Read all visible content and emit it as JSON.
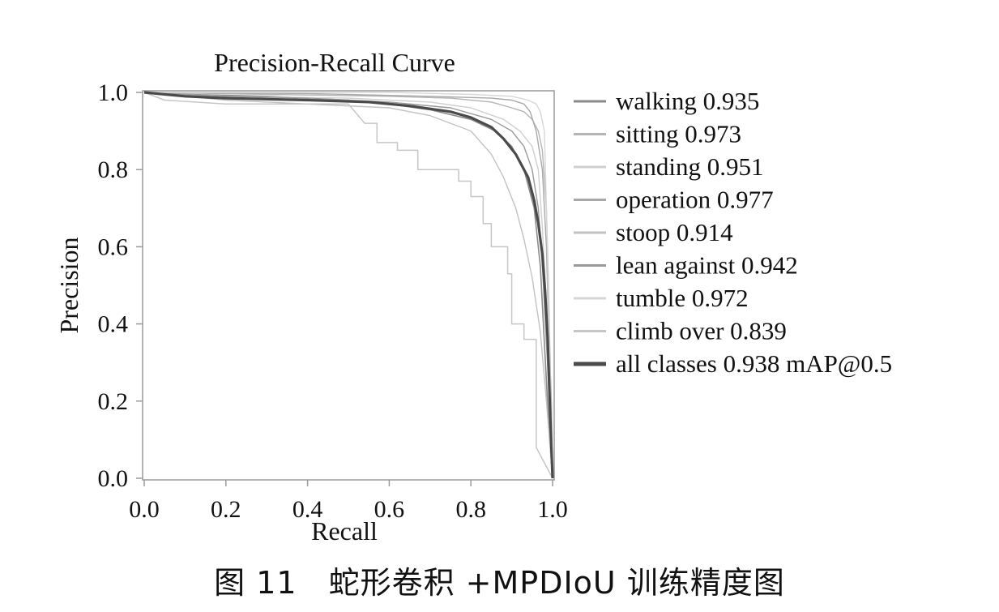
{
  "caption": "图 11　蛇形卷积 +MPDIoU 训练精度图",
  "chart_data": {
    "type": "line",
    "title": "Precision-Recall Curve",
    "xlabel": "Recall",
    "ylabel": "Precision",
    "xlim": [
      0,
      1
    ],
    "ylim": [
      0,
      1
    ],
    "xticks": [
      "0.0",
      "0.2",
      "0.4",
      "0.6",
      "0.8",
      "1.0"
    ],
    "yticks": [
      "0.0",
      "0.2",
      "0.4",
      "0.6",
      "0.8",
      "1.0"
    ],
    "grid": false,
    "legend_position": "right",
    "series": [
      {
        "name": "walking 0.935",
        "color": "#8a8a8a",
        "width": 1.6,
        "points": [
          [
            0,
            1.0
          ],
          [
            0.1,
            0.995
          ],
          [
            0.3,
            0.99
          ],
          [
            0.5,
            0.98
          ],
          [
            0.6,
            0.97
          ],
          [
            0.7,
            0.955
          ],
          [
            0.8,
            0.93
          ],
          [
            0.86,
            0.9
          ],
          [
            0.9,
            0.86
          ],
          [
            0.93,
            0.8
          ],
          [
            0.955,
            0.7
          ],
          [
            0.97,
            0.55
          ],
          [
            0.98,
            0.35
          ],
          [
            0.99,
            0.15
          ],
          [
            1.0,
            0.0
          ]
        ]
      },
      {
        "name": "sitting 0.973",
        "color": "#b4b4b4",
        "width": 1.4,
        "points": [
          [
            0,
            1.0
          ],
          [
            0.3,
            0.995
          ],
          [
            0.6,
            0.99
          ],
          [
            0.75,
            0.985
          ],
          [
            0.85,
            0.975
          ],
          [
            0.9,
            0.96
          ],
          [
            0.93,
            0.95
          ],
          [
            0.95,
            0.93
          ],
          [
            0.965,
            0.9
          ],
          [
            0.975,
            0.85
          ],
          [
            0.985,
            0.7
          ],
          [
            0.99,
            0.5
          ],
          [
            0.995,
            0.25
          ],
          [
            1.0,
            0.0
          ]
        ]
      },
      {
        "name": "standing 0.951",
        "color": "#cfcfcf",
        "width": 1.4,
        "points": [
          [
            0,
            1.0
          ],
          [
            0.2,
            0.99
          ],
          [
            0.5,
            0.985
          ],
          [
            0.7,
            0.975
          ],
          [
            0.8,
            0.96
          ],
          [
            0.88,
            0.93
          ],
          [
            0.92,
            0.9
          ],
          [
            0.95,
            0.86
          ],
          [
            0.965,
            0.8
          ],
          [
            0.975,
            0.65
          ],
          [
            0.985,
            0.45
          ],
          [
            0.995,
            0.2
          ],
          [
            1.0,
            0.0
          ]
        ]
      },
      {
        "name": "operation 0.977",
        "color": "#a8a8a8",
        "width": 1.4,
        "points": [
          [
            0,
            1.0
          ],
          [
            0.4,
            0.997
          ],
          [
            0.7,
            0.99
          ],
          [
            0.85,
            0.985
          ],
          [
            0.9,
            0.98
          ],
          [
            0.93,
            0.97
          ],
          [
            0.945,
            0.95
          ],
          [
            0.96,
            0.9
          ],
          [
            0.975,
            0.8
          ],
          [
            0.985,
            0.6
          ],
          [
            0.99,
            0.4
          ],
          [
            0.997,
            0.2
          ],
          [
            1.0,
            0.0
          ]
        ]
      },
      {
        "name": "stoop 0.914",
        "color": "#c2c2c2",
        "width": 1.4,
        "points": [
          [
            0,
            1.0
          ],
          [
            0.2,
            0.98
          ],
          [
            0.4,
            0.97
          ],
          [
            0.6,
            0.96
          ],
          [
            0.7,
            0.94
          ],
          [
            0.8,
            0.9
          ],
          [
            0.85,
            0.84
          ],
          [
            0.88,
            0.78
          ],
          [
            0.91,
            0.7
          ],
          [
            0.93,
            0.62
          ],
          [
            0.95,
            0.52
          ],
          [
            0.97,
            0.38
          ],
          [
            0.985,
            0.2
          ],
          [
            1.0,
            0.0
          ]
        ]
      },
      {
        "name": "lean against 0.942",
        "color": "#9a9a9a",
        "width": 1.4,
        "points": [
          [
            0,
            1.0
          ],
          [
            0.2,
            0.99
          ],
          [
            0.4,
            0.985
          ],
          [
            0.6,
            0.975
          ],
          [
            0.75,
            0.96
          ],
          [
            0.85,
            0.93
          ],
          [
            0.9,
            0.9
          ],
          [
            0.93,
            0.86
          ],
          [
            0.95,
            0.8
          ],
          [
            0.965,
            0.7
          ],
          [
            0.975,
            0.55
          ],
          [
            0.985,
            0.35
          ],
          [
            0.995,
            0.15
          ],
          [
            1.0,
            0.0
          ]
        ]
      },
      {
        "name": "tumble 0.972",
        "color": "#d6d6d6",
        "width": 1.4,
        "points": [
          [
            0,
            1.0
          ],
          [
            0.6,
            1.0
          ],
          [
            0.8,
            0.995
          ],
          [
            0.9,
            0.99
          ],
          [
            0.94,
            0.98
          ],
          [
            0.96,
            0.97
          ],
          [
            0.97,
            0.95
          ],
          [
            0.98,
            0.9
          ],
          [
            0.985,
            0.7
          ],
          [
            0.99,
            0.45
          ],
          [
            0.995,
            0.2
          ],
          [
            1.0,
            0.0
          ]
        ]
      },
      {
        "name": "climb over 0.839",
        "color": "#c6c6c6",
        "width": 1.5,
        "points": [
          [
            0,
            1.0
          ],
          [
            0.05,
            0.98
          ],
          [
            0.2,
            0.97
          ],
          [
            0.5,
            0.97
          ],
          [
            0.54,
            0.92
          ],
          [
            0.57,
            0.92
          ],
          [
            0.57,
            0.87
          ],
          [
            0.62,
            0.87
          ],
          [
            0.62,
            0.85
          ],
          [
            0.67,
            0.85
          ],
          [
            0.67,
            0.8
          ],
          [
            0.77,
            0.8
          ],
          [
            0.77,
            0.77
          ],
          [
            0.8,
            0.77
          ],
          [
            0.8,
            0.73
          ],
          [
            0.83,
            0.73
          ],
          [
            0.83,
            0.66
          ],
          [
            0.85,
            0.66
          ],
          [
            0.85,
            0.6
          ],
          [
            0.89,
            0.6
          ],
          [
            0.89,
            0.53
          ],
          [
            0.9,
            0.53
          ],
          [
            0.9,
            0.4
          ],
          [
            0.93,
            0.4
          ],
          [
            0.93,
            0.36
          ],
          [
            0.96,
            0.36
          ],
          [
            0.96,
            0.08
          ],
          [
            0.98,
            0.04
          ],
          [
            1.0,
            0.0
          ]
        ]
      },
      {
        "name": "all classes 0.938 mAP@0.5",
        "color": "#4a4a4a",
        "width": 3.2,
        "points": [
          [
            0,
            1.0
          ],
          [
            0.1,
            0.99
          ],
          [
            0.2,
            0.985
          ],
          [
            0.4,
            0.98
          ],
          [
            0.55,
            0.975
          ],
          [
            0.65,
            0.965
          ],
          [
            0.75,
            0.95
          ],
          [
            0.8,
            0.935
          ],
          [
            0.85,
            0.91
          ],
          [
            0.88,
            0.88
          ],
          [
            0.91,
            0.84
          ],
          [
            0.94,
            0.78
          ],
          [
            0.955,
            0.72
          ],
          [
            0.965,
            0.66
          ],
          [
            0.975,
            0.58
          ],
          [
            0.982,
            0.48
          ],
          [
            0.988,
            0.36
          ],
          [
            0.993,
            0.2
          ],
          [
            0.997,
            0.08
          ],
          [
            1.0,
            0.0
          ]
        ]
      }
    ]
  }
}
